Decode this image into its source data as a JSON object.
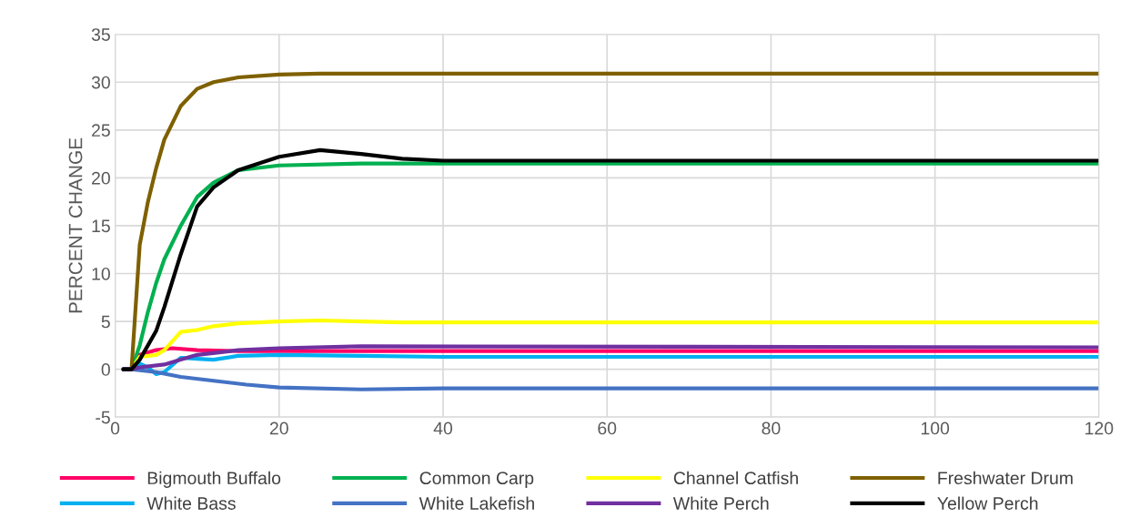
{
  "chart_data": {
    "type": "line",
    "ylabel": "PERCENT CHANGE",
    "xlim": [
      0,
      120
    ],
    "xticks": [
      0,
      20,
      40,
      60,
      80,
      100,
      120
    ],
    "ylim": [
      -5,
      35
    ],
    "yticks": [
      -5,
      0,
      5,
      10,
      15,
      20,
      25,
      30,
      35
    ],
    "grid": true,
    "legend": "bottom",
    "marker": "none",
    "line_style": "solid",
    "series": [
      {
        "name": "Bigmouth Buffalo",
        "color": "#ff0066",
        "x": [
          1,
          2,
          3,
          5,
          7,
          10,
          15,
          20,
          40,
          120
        ],
        "values": [
          0,
          0,
          1.5,
          2,
          2.2,
          2,
          1.9,
          1.9,
          1.9,
          1.9
        ]
      },
      {
        "name": "Common Carp",
        "color": "#00b050",
        "x": [
          1,
          2,
          3,
          4,
          5,
          6,
          8,
          10,
          12,
          15,
          20,
          30,
          120
        ],
        "values": [
          0,
          0,
          2.5,
          6,
          9,
          11.5,
          15,
          18,
          19.5,
          20.8,
          21.3,
          21.5,
          21.5
        ]
      },
      {
        "name": "Channel Catfish",
        "color": "#ffff00",
        "x": [
          1,
          2,
          3,
          5,
          6,
          8,
          10,
          12,
          15,
          20,
          25,
          30,
          35,
          120
        ],
        "values": [
          0,
          0,
          1.3,
          1.5,
          2,
          3.9,
          4.1,
          4.5,
          4.8,
          5.0,
          5.1,
          5.0,
          4.9,
          4.9
        ]
      },
      {
        "name": "Freshwater Drum",
        "color": "#7f6000",
        "x": [
          1,
          2,
          3,
          4,
          5,
          6,
          8,
          10,
          12,
          15,
          20,
          25,
          120
        ],
        "values": [
          0,
          0,
          13,
          17.5,
          21,
          24,
          27.5,
          29.3,
          30,
          30.5,
          30.8,
          30.9,
          30.9
        ]
      },
      {
        "name": "White Bass",
        "color": "#00b0f0",
        "x": [
          1,
          2,
          3,
          4,
          5,
          6,
          8,
          10,
          12,
          15,
          20,
          30,
          40,
          120
        ],
        "values": [
          0,
          0,
          0.6,
          0.2,
          -0.5,
          -0.3,
          1.2,
          1.1,
          1.0,
          1.4,
          1.5,
          1.4,
          1.3,
          1.3
        ]
      },
      {
        "name": "White Lakefish",
        "color": "#4472c4",
        "x": [
          1,
          2,
          3,
          5,
          8,
          12,
          16,
          20,
          30,
          40,
          120
        ],
        "values": [
          0,
          0,
          -0.1,
          -0.3,
          -0.8,
          -1.2,
          -1.6,
          -1.9,
          -2.1,
          -2.0,
          -2.0
        ]
      },
      {
        "name": "White Perch",
        "color": "#7030a0",
        "x": [
          1,
          2,
          3,
          6,
          8,
          10,
          15,
          20,
          30,
          120
        ],
        "values": [
          0,
          0,
          0.2,
          0.5,
          1.0,
          1.5,
          2.0,
          2.2,
          2.4,
          2.3
        ]
      },
      {
        "name": "Yellow Perch",
        "color": "#000000",
        "x": [
          1,
          2,
          3,
          4,
          5,
          6,
          8,
          10,
          12,
          15,
          20,
          25,
          30,
          35,
          40,
          60,
          120
        ],
        "values": [
          0,
          0,
          1,
          2.5,
          4,
          6.5,
          12,
          17,
          19,
          20.8,
          22.2,
          22.9,
          22.5,
          22,
          21.8,
          21.8,
          21.8
        ]
      }
    ]
  }
}
